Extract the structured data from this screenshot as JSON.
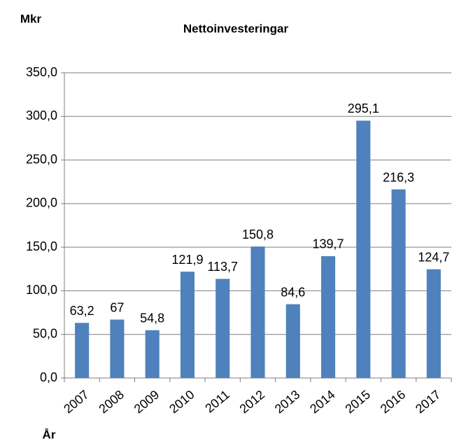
{
  "chart_data": {
    "type": "bar",
    "title": "Nettoinvesteringar",
    "y_label": "Mkr",
    "x_label": "År",
    "categories": [
      "2007",
      "2008",
      "2009",
      "2010",
      "2011",
      "2012",
      "2013",
      "2014",
      "2015",
      "2016",
      "2017"
    ],
    "values": [
      63.2,
      67,
      54.8,
      121.9,
      113.7,
      150.8,
      84.6,
      139.7,
      295.1,
      216.3,
      124.7
    ],
    "value_labels": [
      "63,2",
      "67",
      "54,8",
      "121,9",
      "113,7",
      "150,8",
      "84,6",
      "139,7",
      "295,1",
      "216,3",
      "124,7"
    ],
    "color": "#4f81bd",
    "ylim": [
      0,
      350
    ],
    "yticks": [
      {
        "value": 0,
        "label": "0,0"
      },
      {
        "value": 50,
        "label": "50,0"
      },
      {
        "value": 100,
        "label": "100,0"
      },
      {
        "value": 150,
        "label": "150,0"
      },
      {
        "value": 200,
        "label": "200,0"
      },
      {
        "value": 250,
        "label": "250,0"
      },
      {
        "value": 300,
        "label": "300,0"
      },
      {
        "value": 350,
        "label": "350,0"
      }
    ],
    "grid": true
  }
}
